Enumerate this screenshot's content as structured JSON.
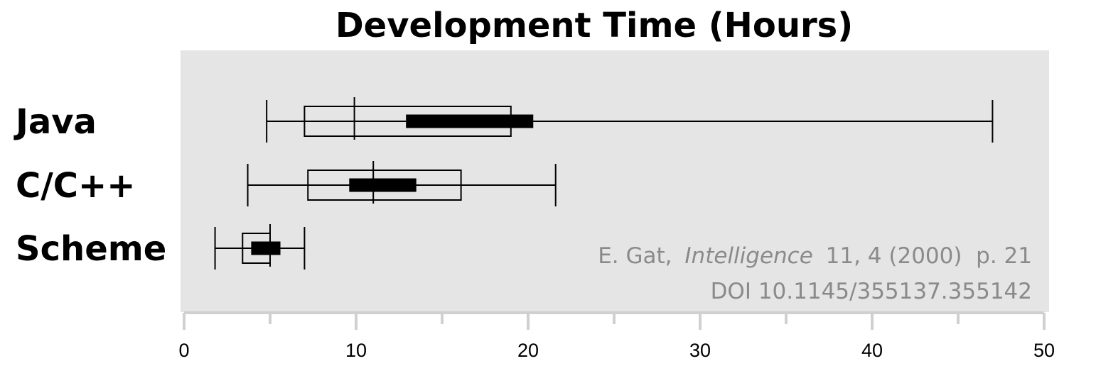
{
  "chart_data": {
    "type": "box",
    "title": "Development Time (Hours)",
    "xlabel": "",
    "ylabel": "",
    "xlim": [
      0,
      50
    ],
    "x_ticks": [
      "0",
      "10",
      "20",
      "30",
      "40",
      "50"
    ],
    "grid": false,
    "legend": "none",
    "series": [
      {
        "name": "Java",
        "whisker_min": 4.8,
        "q1": 7.0,
        "median": 9.9,
        "q3": 19.0,
        "whisker_max": 47.0,
        "ci_low": 12.9,
        "ci_high": 20.3
      },
      {
        "name": "C/C++",
        "whisker_min": 3.7,
        "q1": 7.2,
        "median": 11.0,
        "q3": 16.1,
        "whisker_max": 21.6,
        "ci_low": 9.6,
        "ci_high": 13.5
      },
      {
        "name": "Scheme",
        "whisker_min": 1.8,
        "q1": 3.4,
        "median": 5.0,
        "q3": 5.0,
        "whisker_max": 7.0,
        "ci_low": 3.9,
        "ci_high": 5.6
      }
    ],
    "annotation": {
      "author": "E. Gat,",
      "journal": "Intelligence",
      "reference": "11, 4 (2000)  p. 21",
      "doi": "DOI 10.1145/355137.355142"
    },
    "colors": {
      "panel_background": "#e5e5e5",
      "box_stroke": "#000000",
      "ci_bar": "#000000",
      "citation_text": "#8a8a8a"
    }
  }
}
